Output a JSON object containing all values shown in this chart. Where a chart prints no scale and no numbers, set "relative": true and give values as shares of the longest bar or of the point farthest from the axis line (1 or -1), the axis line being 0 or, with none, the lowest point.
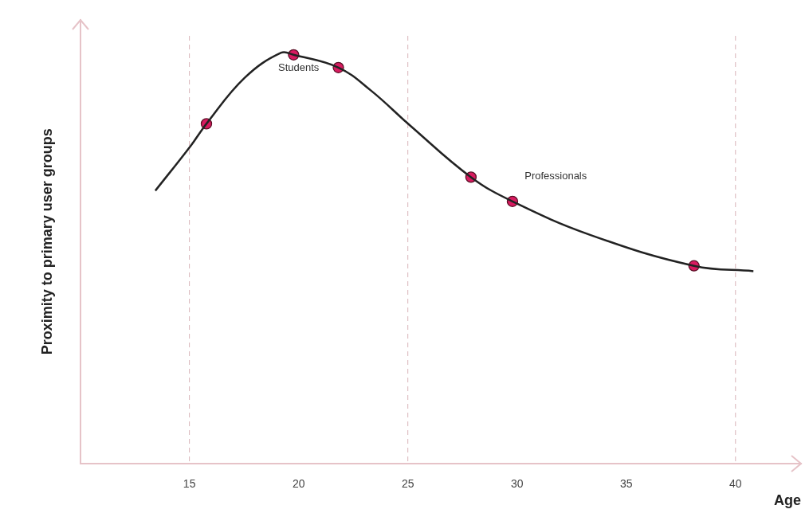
{
  "chart_data": {
    "type": "line",
    "xlabel": "Age",
    "ylabel": "Proximity to primary user groups",
    "relative": true,
    "xlim": [
      10,
      43
    ],
    "xticks": [
      15,
      20,
      25,
      30,
      35,
      40
    ],
    "series": [
      {
        "color": "#222222",
        "marker": "none",
        "x": [
          13.44,
          15.07,
          15.78,
          17.53,
          19.2,
          19.77,
          21.82,
          23.31,
          25.1,
          27.89,
          29.79,
          33.37,
          38.1,
          40.82
        ],
        "values": [
          0.664,
          0.774,
          0.827,
          0.939,
          1,
          0.995,
          0.964,
          0.908,
          0.823,
          0.697,
          0.638,
          0.556,
          0.481,
          0.468
        ]
      },
      {
        "type": "scatter",
        "color": "#d81b60",
        "marker": "circle",
        "x": [
          15.78,
          19.77,
          21.82,
          27.89,
          29.79,
          38.1
        ],
        "values": [
          0.827,
          0.995,
          0.964,
          0.697,
          0.638,
          0.481
        ]
      }
    ],
    "ref_lines": [
      {
        "axis": "x",
        "value": 15,
        "color": "#d9b3b9",
        "line_style": "dashed"
      },
      {
        "axis": "x",
        "value": 25,
        "color": "#d9b3b9",
        "line_style": "dashed"
      },
      {
        "axis": "x",
        "value": 40,
        "color": "#d9b3b9",
        "line_style": "dashed"
      }
    ],
    "annotations": [
      "Students",
      "Professionals"
    ]
  }
}
